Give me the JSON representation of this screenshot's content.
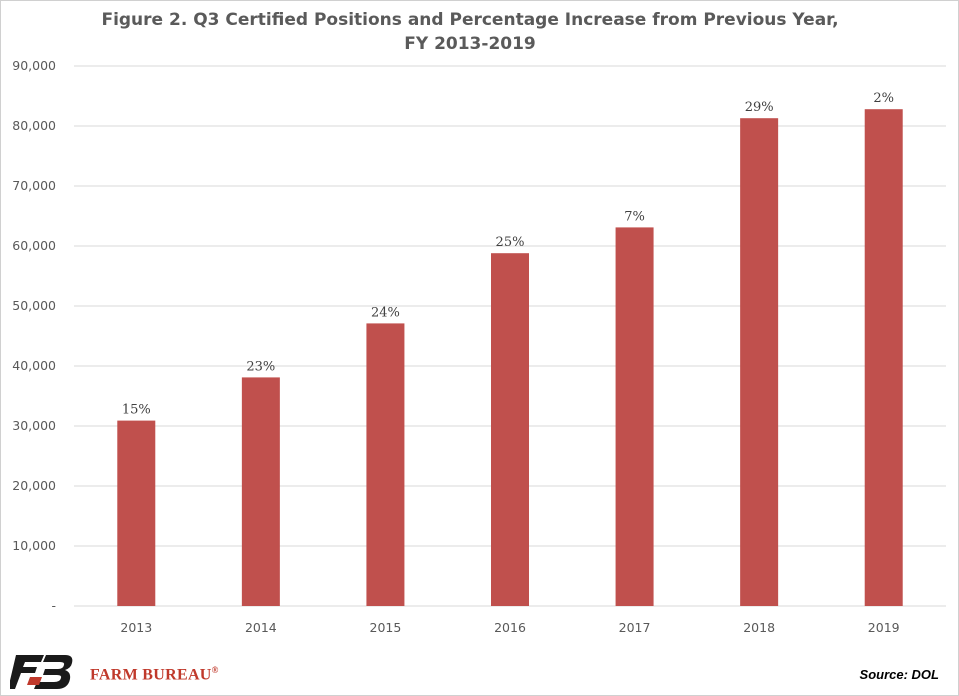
{
  "chart_data": {
    "type": "bar",
    "title": "Figure 2. Q3 Certified Positions and Percentage Increase from Previous Year,",
    "subtitle": "FY 2013-2019",
    "categories": [
      "2013",
      "2014",
      "2015",
      "2016",
      "2017",
      "2018",
      "2019"
    ],
    "values": [
      30900,
      38100,
      47100,
      58800,
      63100,
      81300,
      82800
    ],
    "data_labels": [
      "15%",
      "23%",
      "24%",
      "25%",
      "7%",
      "29%",
      "2%"
    ],
    "ylim": [
      0,
      90000
    ],
    "yticks": [
      0,
      10000,
      20000,
      30000,
      40000,
      50000,
      60000,
      70000,
      80000,
      90000
    ],
    "ytick_labels": [
      "-",
      "10,000",
      "20,000",
      "30,000",
      "40,000",
      "50,000",
      "60,000",
      "70,000",
      "80,000",
      "90,000"
    ],
    "grid": true,
    "bar_color": "#c0504d"
  },
  "footer": {
    "brand": "FARM BUREAU",
    "brand_mark": "®",
    "source": "Source: DOL"
  },
  "colors": {
    "brand_red": "#c0392b",
    "brand_black": "#1a1a1a"
  }
}
